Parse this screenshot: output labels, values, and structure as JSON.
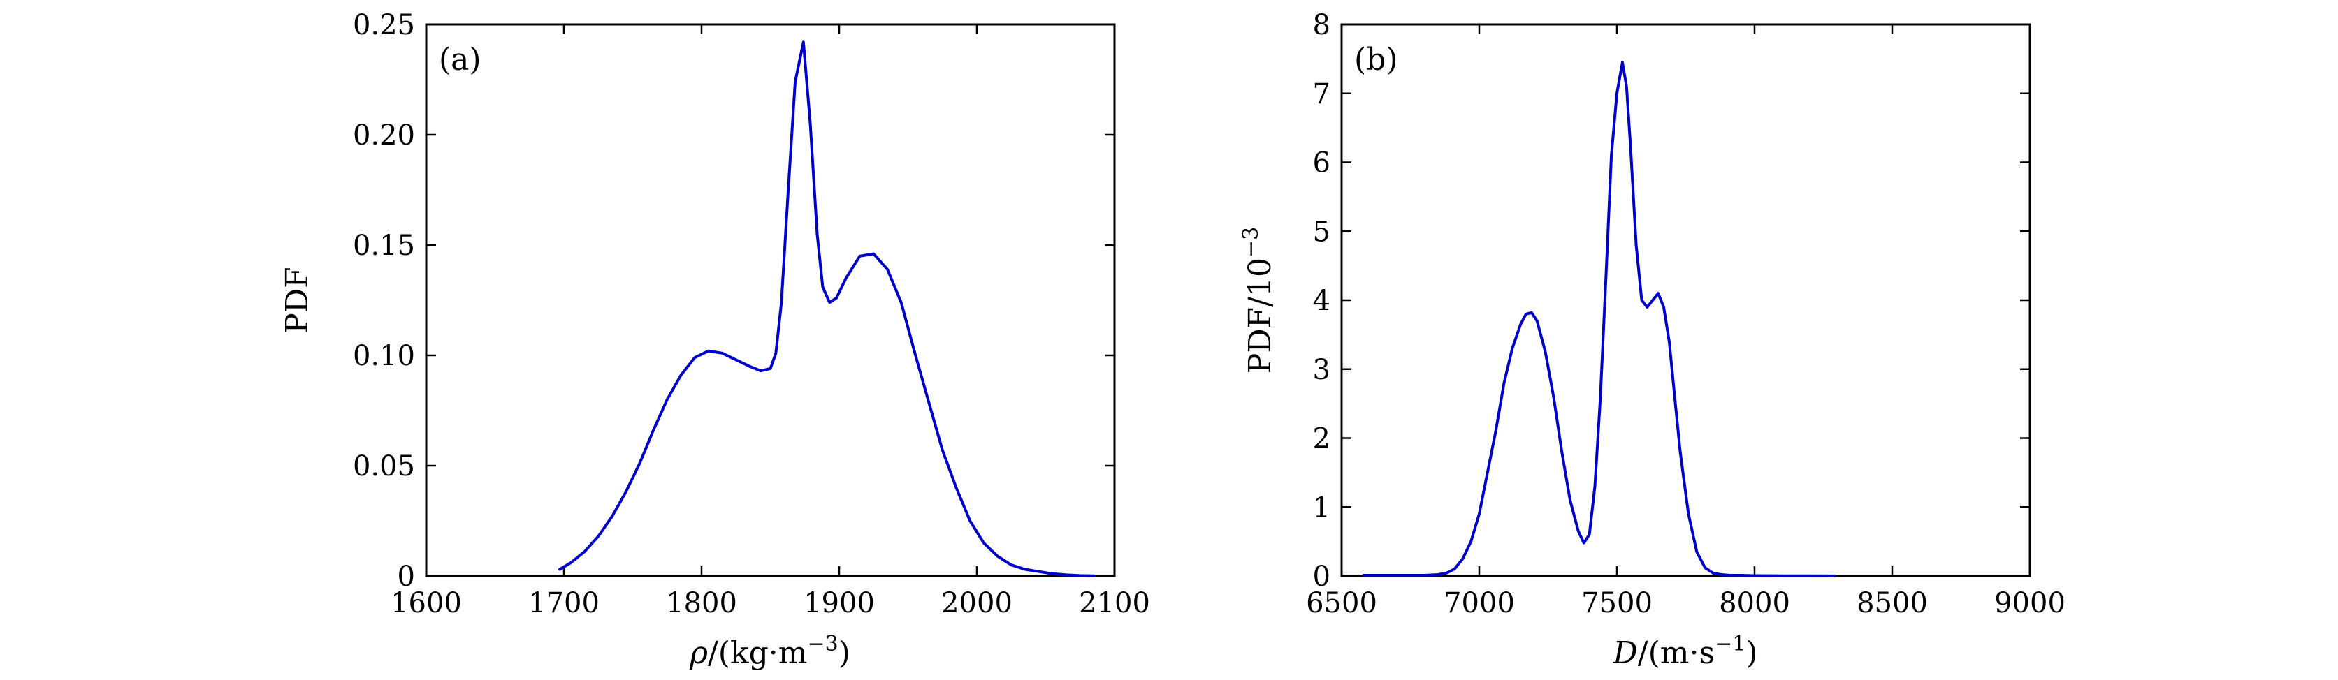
{
  "colors": {
    "line": "#0000cc",
    "axes": "#000000",
    "background": "#ffffff"
  },
  "chart_data": [
    {
      "type": "line",
      "panel_label": "(a)",
      "xlabel": "ρ/(kg·m⁻³)",
      "xlabel_parts": {
        "symbol": "ρ",
        "text": "/(kg·m",
        "sup": "−3",
        "close": ")"
      },
      "ylabel": "PDF",
      "xlim": [
        1600,
        2100
      ],
      "ylim": [
        0,
        0.25
      ],
      "xticks": [
        1600,
        1700,
        1800,
        1900,
        2000,
        2100
      ],
      "yticks": [
        0,
        0.05,
        0.1,
        0.15,
        0.2,
        0.25
      ],
      "ytick_labels": [
        "0",
        "0.05",
        "0.10",
        "0.15",
        "0.20",
        "0.25"
      ],
      "grid": false,
      "series": [
        {
          "x": [
            1697,
            1705,
            1715,
            1725,
            1735,
            1745,
            1755,
            1765,
            1775,
            1785,
            1795,
            1805,
            1815,
            1825,
            1835,
            1843,
            1850,
            1854,
            1858,
            1863,
            1868,
            1874,
            1879,
            1884,
            1888,
            1893,
            1898,
            1905,
            1915,
            1925,
            1935,
            1945,
            1955,
            1965,
            1975,
            1985,
            1995,
            2005,
            2015,
            2025,
            2035,
            2045,
            2055,
            2065,
            2075,
            2085
          ],
          "y": [
            0.003,
            0.006,
            0.011,
            0.018,
            0.027,
            0.038,
            0.051,
            0.066,
            0.08,
            0.091,
            0.099,
            0.102,
            0.101,
            0.098,
            0.095,
            0.093,
            0.094,
            0.101,
            0.124,
            0.175,
            0.224,
            0.242,
            0.205,
            0.155,
            0.131,
            0.124,
            0.126,
            0.135,
            0.145,
            0.146,
            0.139,
            0.124,
            0.101,
            0.079,
            0.057,
            0.04,
            0.025,
            0.015,
            0.009,
            0.005,
            0.003,
            0.002,
            0.001,
            0.0005,
            0.0002,
            0.0001
          ]
        }
      ]
    },
    {
      "type": "line",
      "panel_label": "(b)",
      "xlabel": "D/(m·s⁻¹)",
      "xlabel_parts": {
        "symbol": "D",
        "text": "/(m·s",
        "sup": "−1",
        "close": ")"
      },
      "ylabel": "PDF/10⁻³",
      "ylabel_parts": {
        "text": "PDF/10",
        "sup": "−3"
      },
      "xlim": [
        6500,
        9000
      ],
      "ylim": [
        0,
        8
      ],
      "xticks": [
        6500,
        7000,
        7500,
        8000,
        8500,
        9000
      ],
      "yticks": [
        0,
        1,
        2,
        3,
        4,
        5,
        6,
        7,
        8
      ],
      "ytick_labels": [
        "0",
        "1",
        "2",
        "3",
        "4",
        "5",
        "6",
        "7",
        "8"
      ],
      "grid": false,
      "series": [
        {
          "x": [
            6580,
            6700,
            6800,
            6850,
            6880,
            6910,
            6940,
            6970,
            7000,
            7030,
            7060,
            7090,
            7120,
            7150,
            7170,
            7190,
            7210,
            7240,
            7270,
            7300,
            7330,
            7360,
            7380,
            7400,
            7420,
            7440,
            7460,
            7480,
            7500,
            7520,
            7535,
            7550,
            7570,
            7590,
            7610,
            7630,
            7650,
            7670,
            7690,
            7710,
            7730,
            7760,
            7790,
            7820,
            7850,
            7880,
            7910,
            7950,
            8000,
            8100,
            8200,
            8290
          ],
          "y": [
            0.01,
            0.01,
            0.01,
            0.02,
            0.04,
            0.1,
            0.25,
            0.5,
            0.9,
            1.5,
            2.1,
            2.8,
            3.3,
            3.65,
            3.8,
            3.82,
            3.7,
            3.25,
            2.6,
            1.8,
            1.1,
            0.65,
            0.48,
            0.6,
            1.3,
            2.6,
            4.3,
            6.1,
            7.0,
            7.45,
            7.1,
            6.2,
            4.8,
            4.0,
            3.9,
            4.0,
            4.1,
            3.9,
            3.4,
            2.6,
            1.8,
            0.9,
            0.35,
            0.12,
            0.04,
            0.02,
            0.01,
            0.01,
            0.005,
            0.003,
            0.002,
            0.001
          ]
        }
      ]
    }
  ]
}
